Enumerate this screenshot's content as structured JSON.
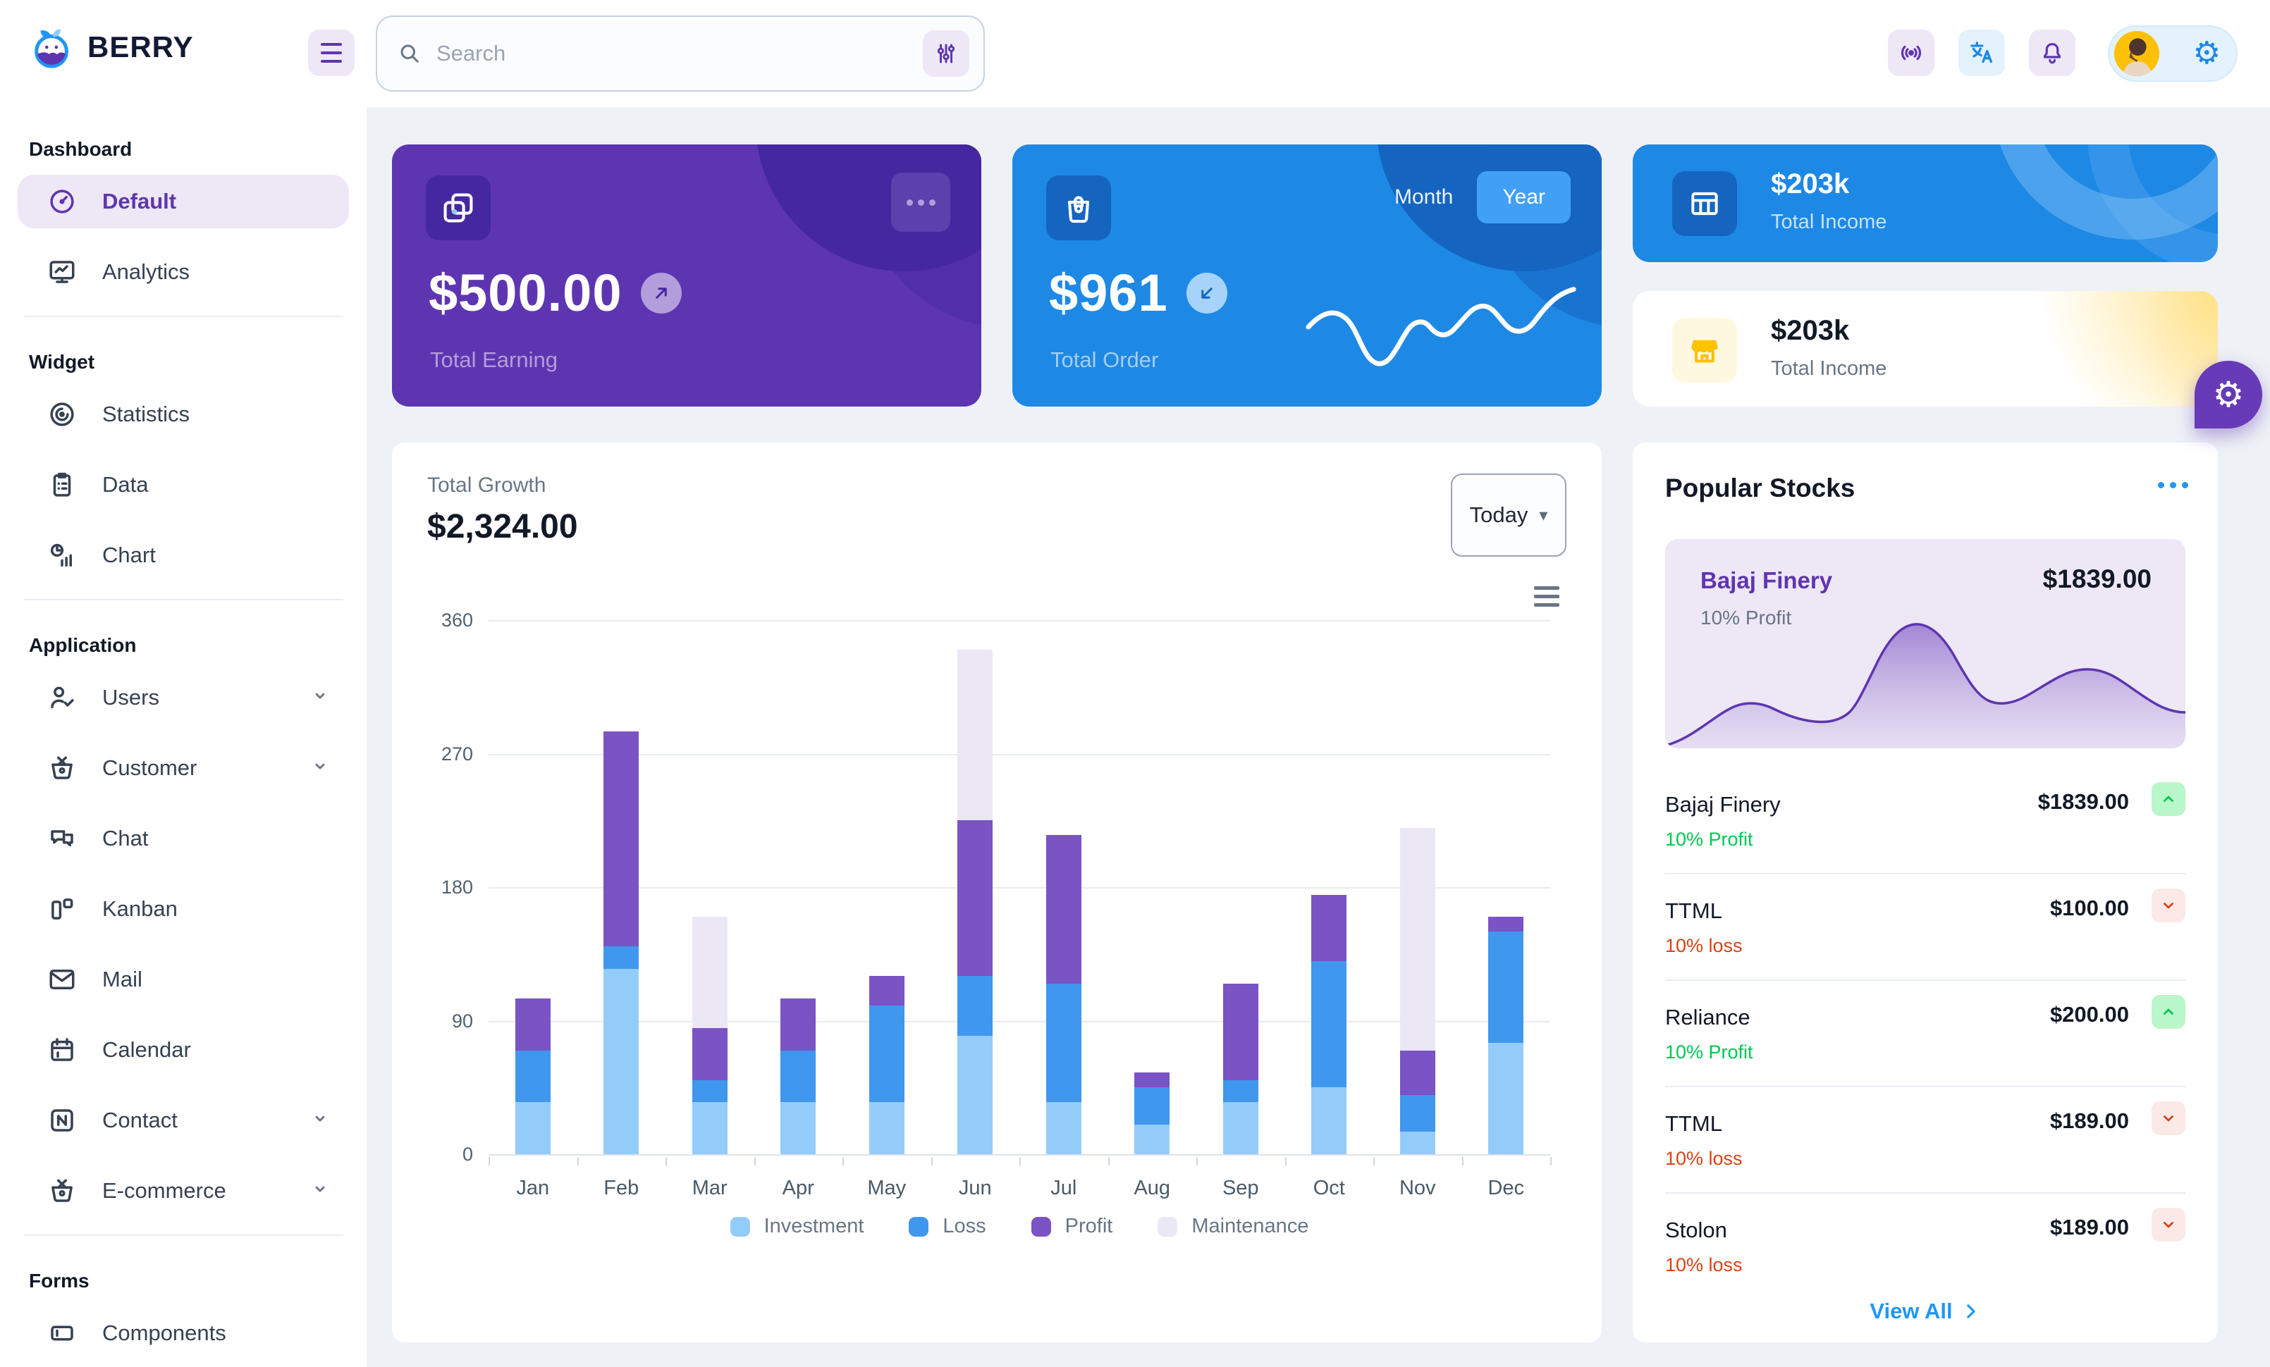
{
  "brand": {
    "name": "BERRY"
  },
  "header": {
    "search": {
      "placeholder": "Search"
    },
    "action_icons": [
      "broadcast-icon",
      "translate-icon",
      "bell-icon"
    ],
    "profile": {
      "avatar": "user-photo",
      "settings_icon": "gear-icon"
    }
  },
  "sidebar": {
    "sections": [
      {
        "title": "Dashboard",
        "items": [
          {
            "label": "Default",
            "icon": "gauge",
            "active": true
          },
          {
            "label": "Analytics",
            "icon": "monitor-chart"
          }
        ]
      },
      {
        "title": "Widget",
        "items": [
          {
            "label": "Statistics",
            "icon": "disc"
          },
          {
            "label": "Data",
            "icon": "clipboard"
          },
          {
            "label": "Chart",
            "icon": "pie-bars"
          }
        ]
      },
      {
        "title": "Application",
        "items": [
          {
            "label": "Users",
            "icon": "user-check",
            "expandable": true
          },
          {
            "label": "Customer",
            "icon": "basket",
            "expandable": true
          },
          {
            "label": "Chat",
            "icon": "chat-bubbles"
          },
          {
            "label": "Kanban",
            "icon": "kanban-board"
          },
          {
            "label": "Mail",
            "icon": "envelope"
          },
          {
            "label": "Calendar",
            "icon": "calendar"
          },
          {
            "label": "Contact",
            "icon": "nfc",
            "expandable": true
          },
          {
            "label": "E-commerce",
            "icon": "basket",
            "expandable": true
          }
        ]
      },
      {
        "title": "Forms",
        "items": [
          {
            "label": "Components",
            "icon": "textbox"
          }
        ]
      }
    ]
  },
  "cards": {
    "total_earning": {
      "amount": "$500.00",
      "label": "Total Earning",
      "icon": "copy-cards",
      "trend": "up"
    },
    "total_order": {
      "amount": "$961",
      "label": "Total Order",
      "icon": "shopping-bag",
      "trend": "down",
      "toggle": {
        "options": [
          "Month",
          "Year"
        ],
        "selected": "Year"
      }
    },
    "total_income_blue": {
      "amount": "$203k",
      "label": "Total Income",
      "icon": "table"
    },
    "total_income_light": {
      "amount": "$203k",
      "label": "Total Income",
      "icon": "storefront"
    }
  },
  "growth_panel": {
    "title": "Total Growth",
    "amount": "$2,324.00",
    "period_selector": "Today"
  },
  "chart_data": {
    "type": "bar",
    "stacked": true,
    "title": "Total Growth",
    "categories": [
      "Jan",
      "Feb",
      "Mar",
      "Apr",
      "May",
      "Jun",
      "Jul",
      "Aug",
      "Sep",
      "Oct",
      "Nov",
      "Dec"
    ],
    "series": [
      {
        "name": "Investment",
        "color": "#94ccf9",
        "values": [
          35,
          125,
          35,
          35,
          35,
          80,
          35,
          20,
          35,
          45,
          15,
          75
        ]
      },
      {
        "name": "Loss",
        "color": "#3f97ee",
        "values": [
          35,
          15,
          15,
          35,
          65,
          40,
          80,
          25,
          15,
          85,
          25,
          75
        ]
      },
      {
        "name": "Profit",
        "color": "#7a53c5",
        "values": [
          35,
          145,
          35,
          35,
          20,
          105,
          100,
          10,
          65,
          45,
          30,
          10
        ]
      },
      {
        "name": "Maintenance",
        "color": "#ece7f5",
        "values": [
          0,
          0,
          75,
          0,
          0,
          115,
          0,
          0,
          0,
          0,
          150,
          0
        ]
      }
    ],
    "ylim": [
      0,
      360
    ],
    "yticks": [
      0,
      90,
      180,
      270,
      360
    ],
    "grid": true,
    "legend_position": "bottom"
  },
  "stocks_panel": {
    "title": "Popular Stocks",
    "featured": {
      "name": "Bajaj Finery",
      "price": "$1839.00",
      "change": "10% Profit"
    },
    "rows": [
      {
        "name": "Bajaj Finery",
        "price": "$1839.00",
        "change": "10% Profit",
        "direction": "up"
      },
      {
        "name": "TTML",
        "price": "$100.00",
        "change": "10% loss",
        "direction": "down"
      },
      {
        "name": "Reliance",
        "price": "$200.00",
        "change": "10% Profit",
        "direction": "up"
      },
      {
        "name": "TTML",
        "price": "$189.00",
        "change": "10% loss",
        "direction": "down"
      },
      {
        "name": "Stolon",
        "price": "$189.00",
        "change": "10% loss",
        "direction": "down"
      }
    ],
    "view_all_label": "View All"
  },
  "colors": {
    "accent_purple": "#5e35b1",
    "deep_purple": "#4527a0",
    "light_purple": "#ede7f6",
    "accent_blue": "#1e88e5",
    "primary_blue": "#2196f3",
    "deep_blue": "#1565c0",
    "light_blue": "#e3f2fd",
    "success": "#00c853",
    "success_bg": "#b9f6ca",
    "error": "#d84315",
    "error_bg": "#fbe9e7",
    "warning": "#ffc107",
    "warning_bg": "#fff8e1",
    "app_bg": "#eef2f6"
  }
}
